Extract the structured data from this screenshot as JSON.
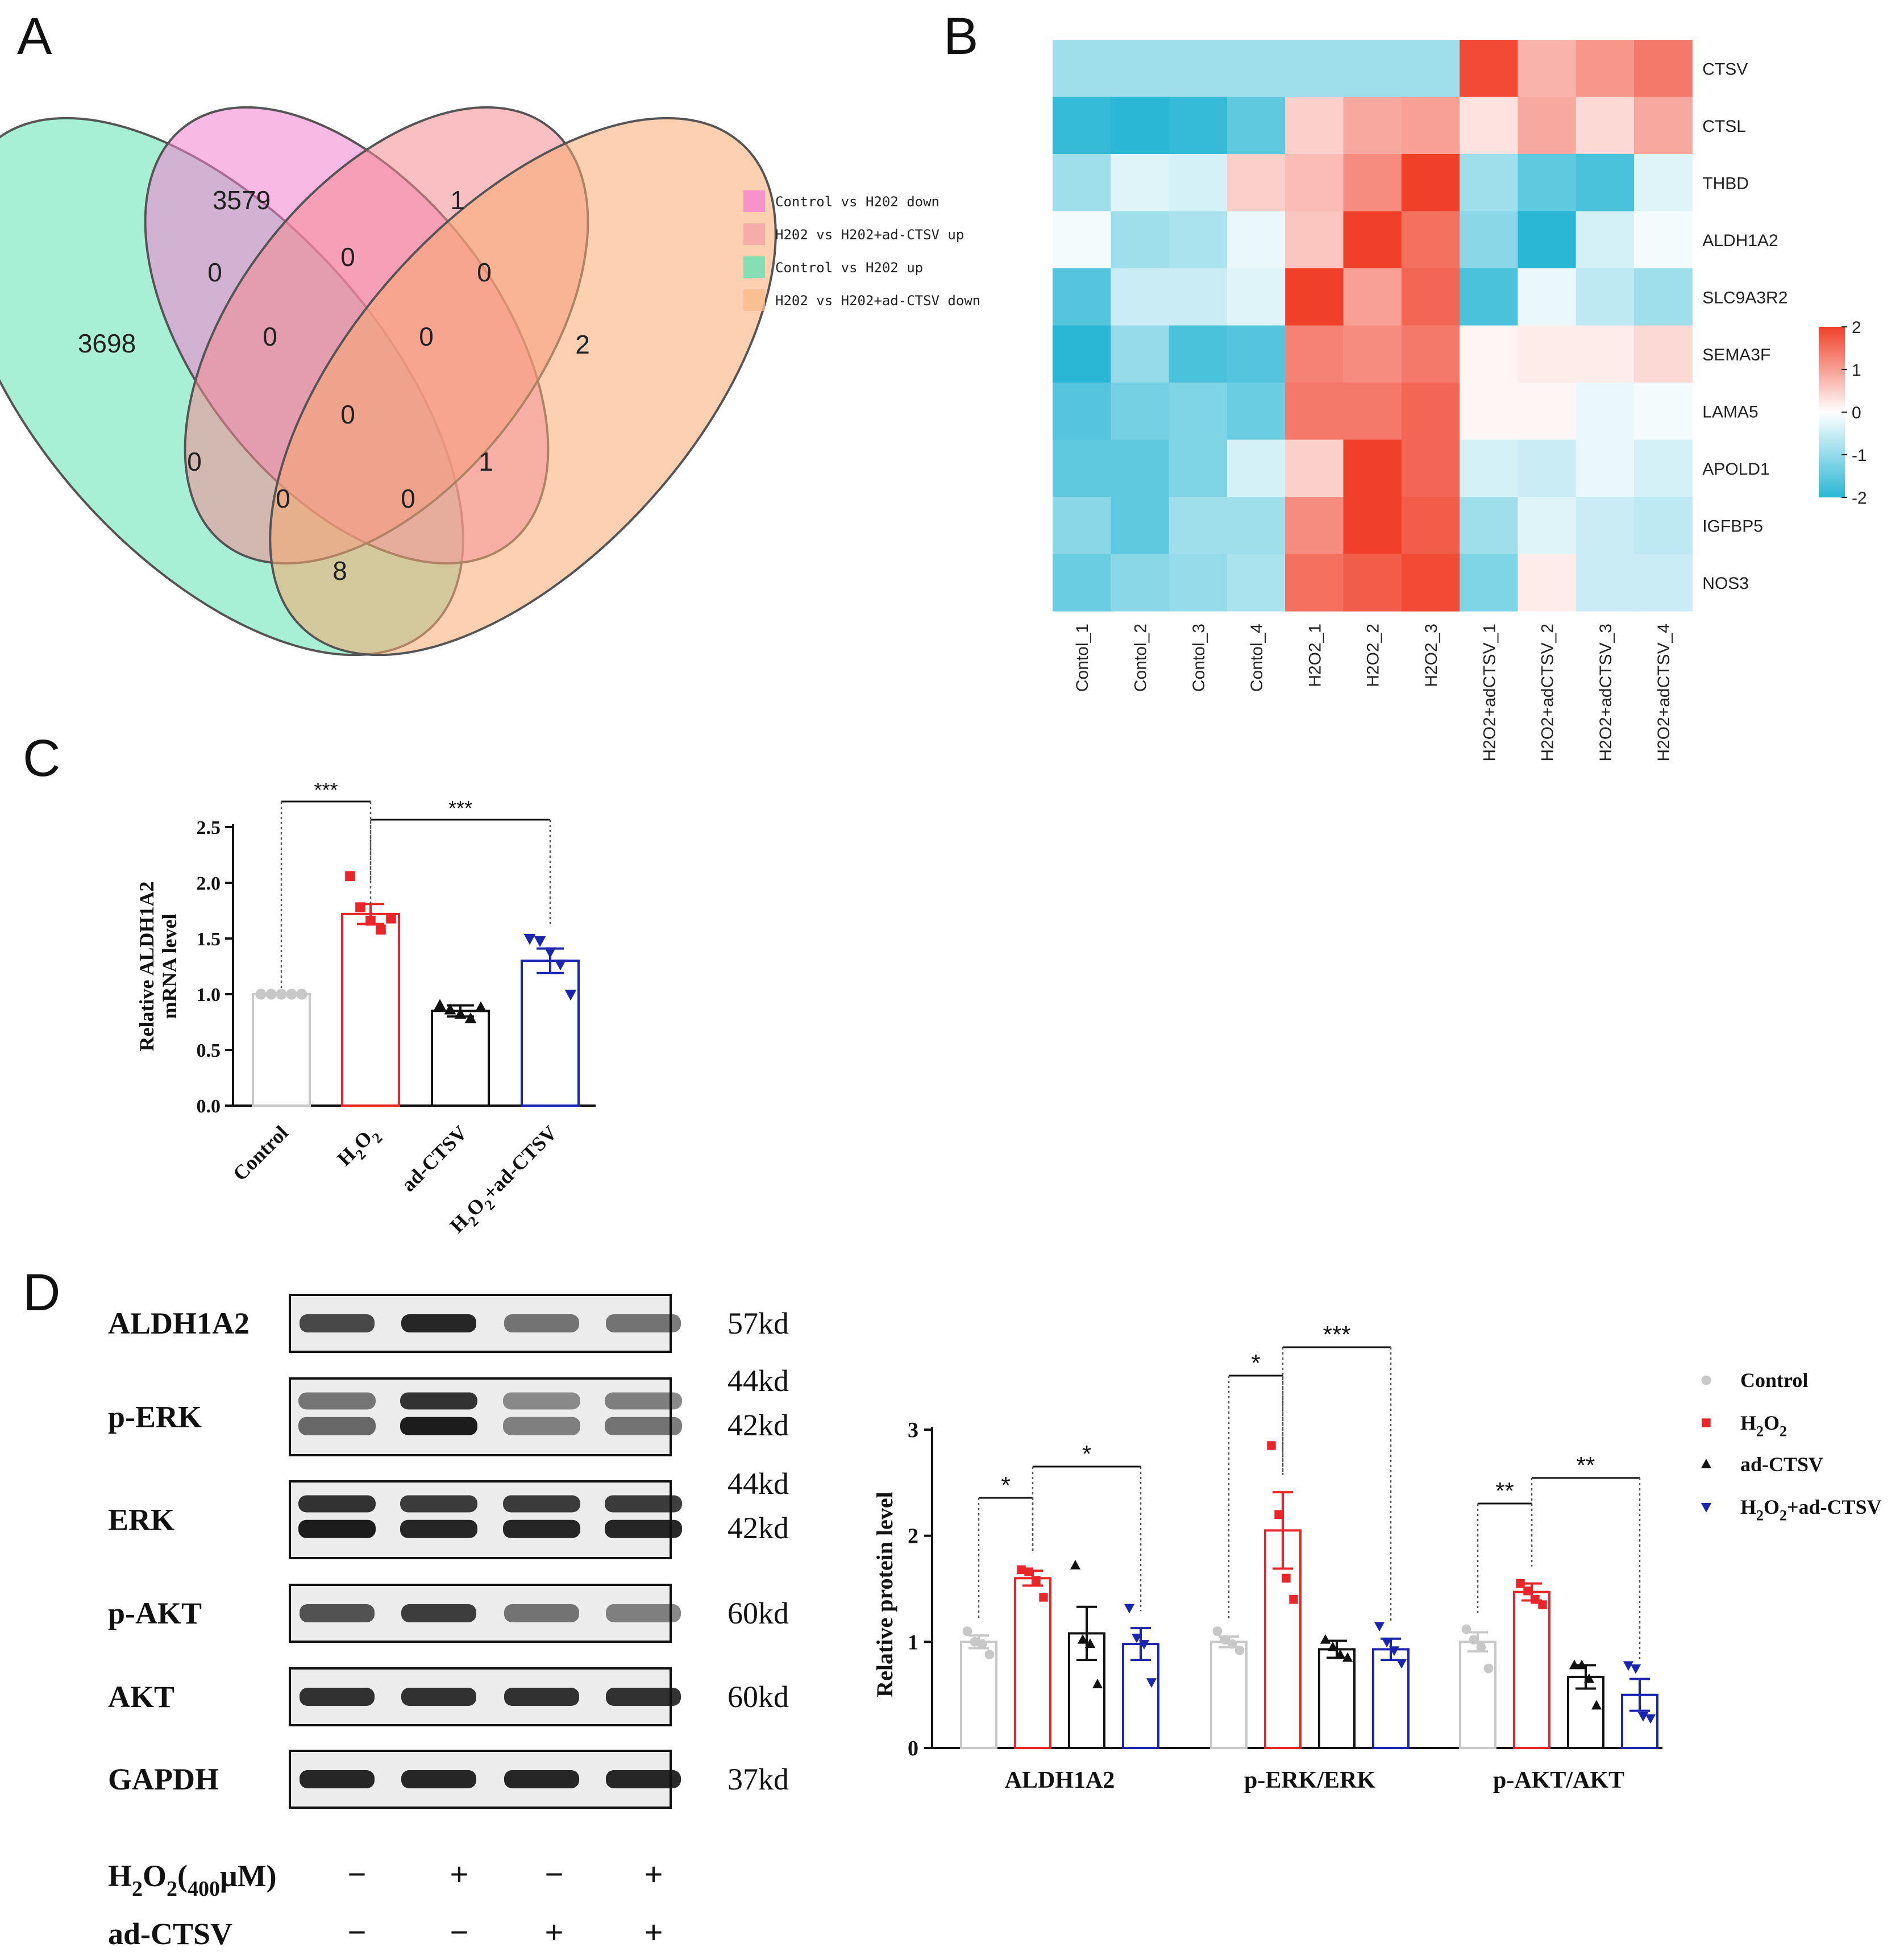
{
  "panels": {
    "a": "A",
    "b": "B",
    "c": "C",
    "d": "D"
  },
  "venn": {
    "legend": [
      {
        "label": "Control vs H202 down",
        "color": "#f47fd0"
      },
      {
        "label": "H202 vs H202+ad-CTSV up",
        "color": "#f4a0a6"
      },
      {
        "label": "Control vs H202 up",
        "color": "#5fe3b5"
      },
      {
        "label": "H202 vs H202+ad-CTSV down",
        "color": "#f9b98a"
      }
    ],
    "counts": {
      "green_only": "3698",
      "pink_only": "3579",
      "red_only": "1",
      "orange_only": "2",
      "green_pink": "0",
      "pink_red": "0",
      "red_orange": "0",
      "green_pink_red": "0",
      "pink_red_orange": "0",
      "all": "0",
      "green_red": "0",
      "pink_orange": "1",
      "green_red_orange": "0",
      "green_pink_orange": "0",
      "green_orange": "8"
    }
  },
  "heatmap": {
    "type": "heatmap",
    "rows": [
      "CTSV",
      "CTSL",
      "THBD",
      "ALDH1A2",
      "SLC9A3R2",
      "SEMA3F",
      "LAMA5",
      "APOLD1",
      "IGFBP5",
      "NOS3"
    ],
    "columns": [
      "Contol_1",
      "Contol_2",
      "Contol_3",
      "Contol_4",
      "H2O2_1",
      "H2O2_2",
      "H2O2_3",
      "H2O2+adCTSV_1",
      "H2O2+adCTSV_2",
      "H2O2+adCTSV_3",
      "H2O2+adCTSV_4"
    ],
    "values": [
      [
        -0.9,
        -0.9,
        -0.9,
        -0.9,
        -0.9,
        -0.9,
        -0.9,
        1.9,
        0.8,
        1.1,
        1.4
      ],
      [
        -1.9,
        -2.0,
        -1.9,
        -1.5,
        0.5,
        0.9,
        1.0,
        0.3,
        0.9,
        0.4,
        0.9
      ],
      [
        -0.9,
        -0.3,
        -0.4,
        0.5,
        0.7,
        1.2,
        2.0,
        -0.9,
        -1.5,
        -1.7,
        -0.3
      ],
      [
        -0.1,
        -0.9,
        -0.8,
        -0.2,
        0.6,
        2.0,
        1.5,
        -1.1,
        -2.0,
        -0.4,
        -0.1
      ],
      [
        -1.6,
        -0.5,
        -0.5,
        -0.3,
        2.0,
        1.0,
        1.6,
        -1.7,
        -0.2,
        -0.6,
        -0.9
      ],
      [
        -2.0,
        -1.0,
        -1.7,
        -1.6,
        1.3,
        1.2,
        1.4,
        0.1,
        0.2,
        0.2,
        0.4
      ],
      [
        -1.6,
        -1.3,
        -1.2,
        -1.4,
        1.4,
        1.4,
        1.6,
        0.1,
        0.1,
        -0.2,
        -0.1
      ],
      [
        -1.5,
        -1.5,
        -1.2,
        -0.4,
        0.5,
        2.0,
        1.6,
        -0.4,
        -0.5,
        -0.2,
        -0.4
      ],
      [
        -1.1,
        -1.5,
        -0.9,
        -0.9,
        1.2,
        2.0,
        1.7,
        -0.9,
        -0.3,
        -0.5,
        -0.6
      ],
      [
        -1.4,
        -1.1,
        -1.0,
        -0.8,
        1.5,
        1.7,
        1.9,
        -1.2,
        0.2,
        -0.5,
        -0.5
      ]
    ],
    "scale": {
      "min": -2,
      "max": 2,
      "ticks": [
        "2",
        "1",
        "0",
        "-1",
        "-2"
      ]
    },
    "colors": {
      "low": "#2ab7d5",
      "mid": "#ffffff",
      "high": "#f0402a"
    }
  },
  "chart_data": [
    {
      "type": "bar",
      "panel": "C",
      "ylabel_line1": "Relative ALDH1A2",
      "ylabel_line2": "mRNA level",
      "ylim": [
        0,
        2.5
      ],
      "yticks": [
        "0.0",
        "0.5",
        "1.0",
        "1.5",
        "2.0",
        "2.5"
      ],
      "categories": [
        "Control",
        "H2O2",
        "ad-CTSV",
        "H2O2+ad-CTSV"
      ],
      "values": [
        1.0,
        1.72,
        0.85,
        1.3
      ],
      "errors": [
        0.01,
        0.09,
        0.05,
        0.11
      ],
      "points": [
        [
          1.0,
          1.0,
          1.0,
          1.0,
          1.0
        ],
        [
          2.06,
          1.78,
          1.66,
          1.58,
          1.68
        ],
        [
          0.9,
          0.86,
          0.82,
          0.78,
          0.88
        ],
        [
          1.5,
          1.48,
          1.38,
          1.27,
          1.0
        ]
      ],
      "colors": [
        "#c8c8c8",
        "#e8262a",
        "#111111",
        "#1c25b0"
      ],
      "markers": [
        "circle",
        "square",
        "triangle",
        "triangle-down"
      ],
      "significance": [
        {
          "from": 0,
          "to": 1,
          "label": "***"
        },
        {
          "from": 1,
          "to": 3,
          "label": "***"
        }
      ]
    },
    {
      "type": "bar",
      "panel": "D",
      "ylabel": "Relative protein level",
      "ylim": [
        0,
        3
      ],
      "yticks": [
        "0",
        "1",
        "2",
        "3"
      ],
      "groups": [
        "ALDH1A2",
        "p-ERK/ERK",
        "p-AKT/AKT"
      ],
      "series": [
        {
          "name": "Control",
          "values": [
            1.0,
            1.0,
            1.0
          ],
          "errors": [
            0.06,
            0.05,
            0.09
          ],
          "points": [
            [
              1.1,
              1.0,
              0.98,
              0.88
            ],
            [
              1.1,
              1.02,
              0.98,
              0.92
            ],
            [
              1.12,
              1.02,
              0.95,
              0.75
            ]
          ]
        },
        {
          "name": "H2O2",
          "values": [
            1.6,
            2.05,
            1.47
          ],
          "errors": [
            0.07,
            0.36,
            0.08
          ],
          "points": [
            [
              1.68,
              1.66,
              1.58,
              1.42
            ],
            [
              2.85,
              2.2,
              1.6,
              1.4
            ],
            [
              1.55,
              1.48,
              1.4,
              1.35
            ]
          ]
        },
        {
          "name": "ad-CTSV",
          "values": [
            1.08,
            0.93,
            0.67
          ],
          "errors": [
            0.25,
            0.08,
            0.11
          ],
          "points": [
            [
              1.72,
              1.02,
              0.98,
              0.6
            ],
            [
              1.02,
              0.95,
              0.88,
              0.85
            ],
            [
              0.78,
              0.78,
              0.65,
              0.4
            ]
          ]
        },
        {
          "name": "H2O2+ad-CTSV",
          "values": [
            0.98,
            0.93,
            0.5
          ],
          "errors": [
            0.15,
            0.1,
            0.15
          ],
          "points": [
            [
              1.32,
              1.04,
              0.98,
              0.62
            ],
            [
              1.15,
              1.0,
              0.92,
              0.8
            ],
            [
              0.78,
              0.75,
              0.3,
              0.28
            ]
          ]
        }
      ],
      "colors": [
        "#c8c8c8",
        "#e8262a",
        "#111111",
        "#1c25b0"
      ],
      "markers": [
        "circle",
        "square",
        "triangle",
        "triangle-down"
      ],
      "legend_labels": [
        "Control",
        "H2O2",
        "ad-CTSV",
        "H2O2+ad-CTSV"
      ],
      "significance": [
        {
          "group": 0,
          "from": 0,
          "to": 1,
          "label": "*"
        },
        {
          "group": 0,
          "from": 1,
          "to": 3,
          "label": "*"
        },
        {
          "group": 1,
          "from": 0,
          "to": 1,
          "label": "*"
        },
        {
          "group": 1,
          "from": 1,
          "to": 3,
          "label": "***"
        },
        {
          "group": 2,
          "from": 0,
          "to": 1,
          "label": "**"
        },
        {
          "group": 2,
          "from": 1,
          "to": 3,
          "label": "**"
        }
      ]
    }
  ],
  "blot": {
    "rows": [
      {
        "label": "ALDH1A2",
        "kd": [
          "57kd"
        ]
      },
      {
        "label": "p-ERK",
        "kd": [
          "44kd",
          "42kd"
        ]
      },
      {
        "label": "ERK",
        "kd": [
          "44kd",
          "42kd"
        ]
      },
      {
        "label": "p-AKT",
        "kd": [
          "60kd"
        ]
      },
      {
        "label": "AKT",
        "kd": [
          "60kd"
        ]
      },
      {
        "label": "GAPDH",
        "kd": [
          "37kd"
        ]
      }
    ],
    "h2o2_label": "H2O2(400μM)",
    "h2o2_signs": [
      "−",
      "+",
      "−",
      "+"
    ],
    "adctsv_label": "ad-CTSV",
    "adctsv_signs": [
      "−",
      "−",
      "+",
      "+"
    ]
  }
}
